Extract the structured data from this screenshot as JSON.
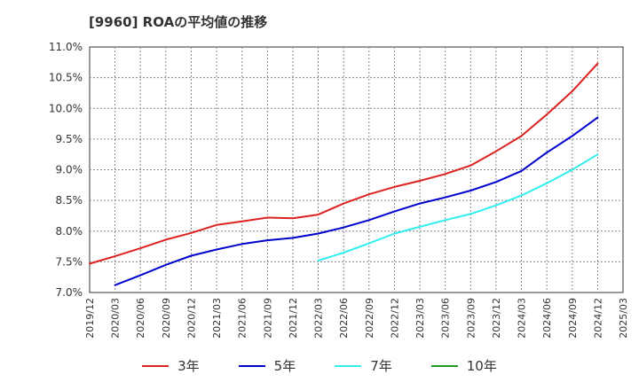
{
  "chart_data": {
    "type": "line",
    "title": "[9960]  ROAの平均値の推移",
    "xlabel": "",
    "ylabel": "",
    "x_ticks": [
      "2019/12",
      "2020/03",
      "2020/06",
      "2020/09",
      "2020/12",
      "2021/03",
      "2021/06",
      "2021/09",
      "2021/12",
      "2022/03",
      "2022/06",
      "2022/09",
      "2022/12",
      "2023/03",
      "2023/06",
      "2023/09",
      "2023/12",
      "2024/03",
      "2024/06",
      "2024/09",
      "2024/12",
      "2025/03"
    ],
    "y_ticks": [
      "7.0%",
      "7.5%",
      "8.0%",
      "8.5%",
      "9.0%",
      "9.5%",
      "10.0%",
      "10.5%",
      "11.0%"
    ],
    "ylim": [
      7.0,
      11.0
    ],
    "grid": true,
    "legend_position": "bottom",
    "series": [
      {
        "name": "3年",
        "color": "#dd2222",
        "start": "2019/12",
        "values": [
          7.47,
          7.59,
          7.72,
          7.86,
          7.97,
          8.1,
          8.16,
          8.22,
          8.21,
          8.27,
          8.45,
          8.6,
          8.72,
          8.82,
          8.93,
          9.07,
          9.3,
          9.55,
          9.9,
          10.28,
          10.73
        ]
      },
      {
        "name": "5年",
        "color": "#0000cc",
        "start": "2020/03",
        "values": [
          7.12,
          7.28,
          7.45,
          7.6,
          7.7,
          7.79,
          7.85,
          7.89,
          7.96,
          8.06,
          8.18,
          8.32,
          8.45,
          8.55,
          8.66,
          8.8,
          8.98,
          9.28,
          9.55,
          9.85
        ]
      },
      {
        "name": "7年",
        "color": "#33eeee",
        "start": "2022/03",
        "values": [
          7.52,
          7.65,
          7.8,
          7.96,
          8.07,
          8.18,
          8.28,
          8.42,
          8.58,
          8.78,
          9.0,
          9.25
        ]
      },
      {
        "name": "10年",
        "color": "#229922",
        "start": "2025/03",
        "values": []
      }
    ]
  }
}
